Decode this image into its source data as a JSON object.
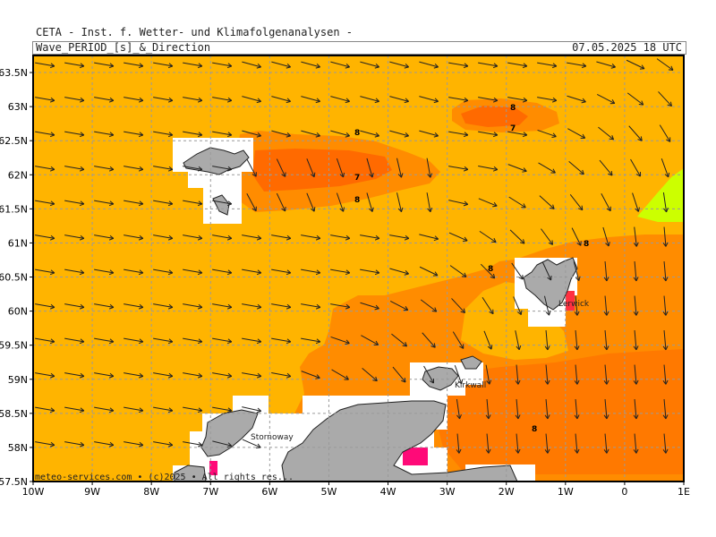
{
  "header": {
    "institute": "CETA - Inst. f. Wetter- und Klimafolgenanalysen -",
    "title": "Wave_PERIOD_[s]_&_Direction",
    "valid_time": "07.05.2025 18 UTC"
  },
  "axes": {
    "lat_labels": [
      "63.5N",
      "63N",
      "62.5N",
      "62N",
      "61.5N",
      "61N",
      "60.5N",
      "60N",
      "59.5N",
      "59N",
      "58.5N",
      "58N",
      "57.5N"
    ],
    "lon_labels": [
      "10W",
      "9W",
      "8W",
      "7W",
      "6W",
      "5W",
      "4W",
      "3W",
      "2W",
      "1W",
      "0",
      "1E"
    ],
    "lat_range": [
      57.5,
      63.75
    ],
    "lon_range": [
      -10,
      1
    ],
    "grid": true
  },
  "colors": {
    "period_7": "#ff6a00",
    "period_8": "#ff8c00",
    "period_9": "#ffb400",
    "period_lt6": "#ccff00",
    "period_high": "#ff0a78",
    "land": "#aaaaaa",
    "masked": "#ffffff"
  },
  "contour_labels": [
    "8",
    "7",
    "8",
    "7",
    "8",
    "8",
    "8",
    "8"
  ],
  "places": {
    "lerwick": "Lerwick",
    "kirkwall": "Kirkwall",
    "stornoway": "Stornoway"
  },
  "credit": "meteo-services.com • (c)2025 • All rights res..."
}
